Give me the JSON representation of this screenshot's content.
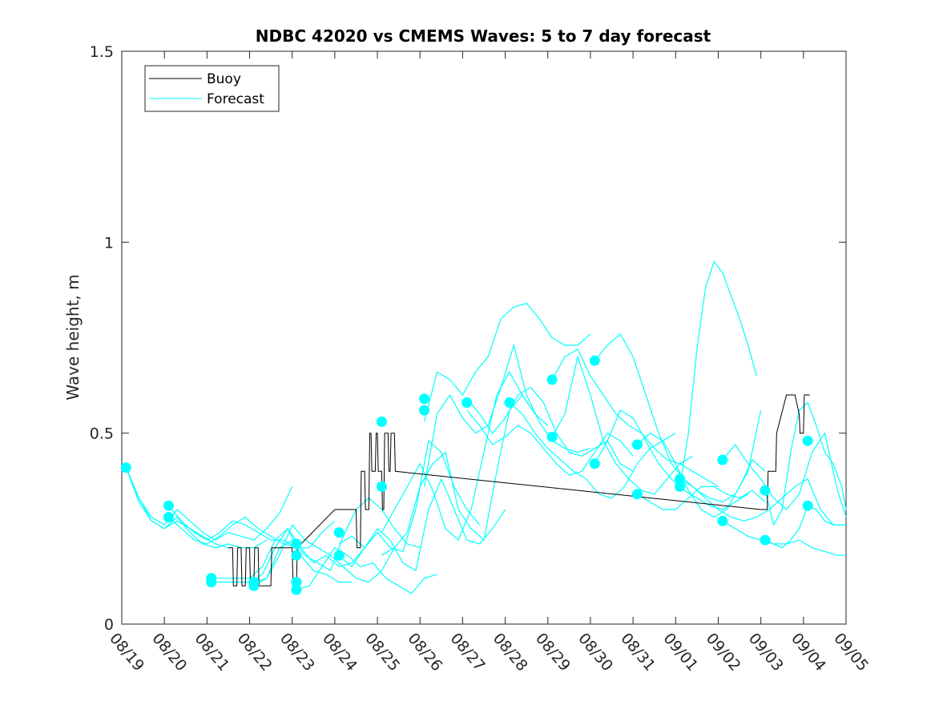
{
  "chart_data": {
    "type": "line",
    "title": "NDBC 42020 vs CMEMS Waves: 5 to 7 day forecast",
    "ylabel": "Wave height, m",
    "xlabel": "",
    "xlim": [
      0,
      17
    ],
    "ylim": [
      0,
      1.5
    ],
    "x_ticks": [
      "08/19",
      "08/20",
      "08/21",
      "08/22",
      "08/23",
      "08/24",
      "08/25",
      "08/26",
      "08/27",
      "08/28",
      "08/29",
      "08/30",
      "08/31",
      "09/01",
      "09/02",
      "09/03",
      "09/04",
      "09/05"
    ],
    "y_ticks": [
      {
        "value": 0,
        "label": "0"
      },
      {
        "value": 0.5,
        "label": "0.5"
      },
      {
        "value": 1,
        "label": "1"
      },
      {
        "value": 1.5,
        "label": "1.5"
      }
    ],
    "grid": false,
    "legend_position": "top-left",
    "colors": {
      "buoy": "#000000",
      "forecast": "#00ffff",
      "axes": "#262626"
    },
    "legend": [
      {
        "label": "Buoy",
        "color": "#000000"
      },
      {
        "label": "Forecast",
        "color": "#00ffff"
      }
    ],
    "buoy": {
      "name": "Buoy",
      "x": [
        2.5,
        2.6,
        2.62,
        2.7,
        2.72,
        2.8,
        2.82,
        2.9,
        2.92,
        3.0,
        3.02,
        3.1,
        3.12,
        3.2,
        3.22,
        3.5,
        3.52,
        4.0,
        4.02,
        4.1,
        4.12,
        5.0,
        5.3,
        5.5,
        5.52,
        5.6,
        5.62,
        5.7,
        5.72,
        5.8,
        5.82,
        5.85,
        5.87,
        5.95,
        5.97,
        6.0,
        6.02,
        6.1,
        6.12,
        6.15,
        6.17,
        6.25,
        6.27,
        6.3,
        6.32,
        6.4,
        6.42,
        15.0,
        15.02,
        15.15,
        15.17,
        15.35,
        15.37,
        15.6,
        15.8,
        15.9,
        15.92,
        16.0,
        16.02,
        16.15
      ],
      "y": [
        0.2,
        0.2,
        0.1,
        0.1,
        0.2,
        0.2,
        0.1,
        0.1,
        0.2,
        0.2,
        0.1,
        0.1,
        0.2,
        0.2,
        0.1,
        0.1,
        0.2,
        0.2,
        0.1,
        0.1,
        0.2,
        0.3,
        0.3,
        0.3,
        0.2,
        0.2,
        0.4,
        0.4,
        0.3,
        0.3,
        0.5,
        0.5,
        0.4,
        0.4,
        0.5,
        0.5,
        0.4,
        0.4,
        0.3,
        0.3,
        0.5,
        0.5,
        0.4,
        0.4,
        0.5,
        0.5,
        0.4,
        0.3,
        0.3,
        0.3,
        0.4,
        0.4,
        0.5,
        0.6,
        0.6,
        0.55,
        0.5,
        0.5,
        0.6,
        0.6
      ]
    },
    "forecast_series": [
      {
        "x": [
          0.1,
          0.4,
          0.7,
          1.0,
          1.3,
          1.6,
          1.9,
          2.2,
          2.5,
          2.8,
          3.1,
          3.4,
          3.7,
          4.0
        ],
        "y": [
          0.41,
          0.33,
          0.28,
          0.26,
          0.3,
          0.27,
          0.24,
          0.22,
          0.24,
          0.23,
          0.22,
          0.25,
          0.29,
          0.36
        ]
      },
      {
        "x": [
          0.1,
          0.4,
          0.7,
          1.0,
          1.3,
          1.6,
          1.9,
          2.2,
          2.5
        ],
        "y": [
          0.41,
          0.32,
          0.27,
          0.25,
          0.27,
          0.25,
          0.23,
          0.21,
          0.2
        ]
      },
      {
        "x": [
          0.1,
          0.4,
          0.7,
          1.0,
          1.3,
          1.6,
          1.9,
          2.2,
          2.5,
          2.8,
          3.1,
          3.4
        ],
        "y": [
          0.41,
          0.33,
          0.27,
          0.25,
          0.28,
          0.24,
          0.21,
          0.2,
          0.21,
          0.2,
          0.2,
          0.22
        ]
      },
      {
        "x": [
          1.1,
          1.4,
          1.7,
          2.0,
          2.3,
          2.6,
          2.9,
          3.2,
          3.5,
          3.8,
          4.1
        ],
        "y": [
          0.31,
          0.27,
          0.24,
          0.22,
          0.24,
          0.27,
          0.26,
          0.24,
          0.22,
          0.22,
          0.2
        ]
      },
      {
        "x": [
          1.1,
          1.4,
          1.7,
          2.0,
          2.3,
          2.6,
          2.9,
          3.2,
          3.5,
          3.8,
          4.1,
          4.4,
          4.7,
          5.0
        ],
        "y": [
          0.28,
          0.25,
          0.22,
          0.21,
          0.23,
          0.26,
          0.28,
          0.25,
          0.23,
          0.21,
          0.2,
          0.2,
          0.24,
          0.27
        ]
      },
      {
        "x": [
          2.1,
          2.4,
          2.7,
          3.0,
          3.3,
          3.6,
          3.9,
          4.2,
          4.5,
          4.8,
          5.1,
          5.4,
          5.7,
          6.0
        ],
        "y": [
          0.12,
          0.12,
          0.12,
          0.12,
          0.15,
          0.22,
          0.25,
          0.2,
          0.16,
          0.18,
          0.15,
          0.16,
          0.2,
          0.24
        ]
      },
      {
        "x": [
          2.1,
          2.4,
          2.7,
          3.0,
          3.3,
          3.6,
          3.9,
          4.2,
          4.5,
          4.8,
          5.1,
          5.4
        ],
        "y": [
          0.11,
          0.11,
          0.11,
          0.11,
          0.13,
          0.2,
          0.25,
          0.18,
          0.14,
          0.13,
          0.11,
          0.11
        ]
      },
      {
        "x": [
          3.1,
          3.4,
          3.7,
          4.0,
          4.3,
          4.6,
          4.9,
          5.2,
          5.5,
          5.8,
          6.1,
          6.4
        ],
        "y": [
          0.1,
          0.12,
          0.18,
          0.26,
          0.22,
          0.2,
          0.18,
          0.15,
          0.12,
          0.11,
          0.14,
          0.2
        ]
      },
      {
        "x": [
          3.1,
          3.4,
          3.7,
          4.0,
          4.3,
          4.6,
          4.9,
          5.2,
          5.5,
          5.8,
          6.1,
          6.4,
          6.7,
          7.0
        ],
        "y": [
          0.11,
          0.12,
          0.2,
          0.22,
          0.18,
          0.16,
          0.14,
          0.23,
          0.3,
          0.33,
          0.3,
          0.25,
          0.21,
          0.2
        ]
      },
      {
        "x": [
          4.1,
          4.4,
          4.7,
          5.0,
          5.3,
          5.6,
          5.9,
          6.2,
          6.5,
          6.8,
          7.1,
          7.4
        ],
        "y": [
          0.09,
          0.1,
          0.15,
          0.2,
          0.18,
          0.15,
          0.16,
          0.12,
          0.1,
          0.08,
          0.12,
          0.13
        ]
      },
      {
        "x": [
          5.1,
          5.4,
          5.7,
          6.0,
          6.3,
          6.6,
          6.9,
          7.2,
          7.5,
          7.8,
          8.1,
          8.4
        ],
        "y": [
          0.21,
          0.23,
          0.2,
          0.24,
          0.2,
          0.19,
          0.3,
          0.48,
          0.45,
          0.36,
          0.3,
          0.26
        ]
      },
      {
        "x": [
          5.1,
          5.4,
          5.7,
          6.0,
          6.3,
          6.6,
          6.9,
          7.2,
          7.5,
          7.8,
          8.1,
          8.4,
          8.7,
          9.0
        ],
        "y": [
          0.18,
          0.15,
          0.2,
          0.25,
          0.22,
          0.16,
          0.14,
          0.3,
          0.38,
          0.3,
          0.22,
          0.21,
          0.25,
          0.3
        ]
      },
      {
        "x": [
          6.1,
          6.4,
          6.7,
          7.0,
          7.3,
          7.6,
          7.9,
          8.2,
          8.5,
          8.8,
          9.1,
          9.4,
          9.7,
          10.0
        ],
        "y": [
          0.24,
          0.3,
          0.36,
          0.42,
          0.35,
          0.25,
          0.22,
          0.3,
          0.45,
          0.6,
          0.66,
          0.6,
          0.55,
          0.52
        ]
      },
      {
        "x": [
          6.1,
          6.4,
          6.7,
          7.0,
          7.3,
          7.6,
          7.9,
          8.2,
          8.5,
          8.8,
          9.1,
          9.4,
          9.7
        ],
        "y": [
          0.18,
          0.2,
          0.24,
          0.36,
          0.42,
          0.45,
          0.3,
          0.25,
          0.22,
          0.4,
          0.56,
          0.6,
          0.55
        ]
      },
      {
        "x": [
          7.1,
          7.4,
          7.7,
          8.0,
          8.3,
          8.6,
          8.9,
          9.2,
          9.5,
          9.8,
          10.1,
          10.4,
          10.7,
          11.0
        ],
        "y": [
          0.53,
          0.66,
          0.64,
          0.6,
          0.66,
          0.7,
          0.8,
          0.83,
          0.84,
          0.8,
          0.75,
          0.73,
          0.73,
          0.76
        ]
      },
      {
        "x": [
          7.1,
          7.4,
          7.7,
          8.0,
          8.3,
          8.6,
          8.9,
          9.2,
          9.5,
          9.8,
          10.1,
          10.4,
          10.7,
          11.0
        ],
        "y": [
          0.36,
          0.55,
          0.6,
          0.54,
          0.5,
          0.52,
          0.62,
          0.73,
          0.6,
          0.53,
          0.48,
          0.46,
          0.45,
          0.46
        ]
      },
      {
        "x": [
          8.1,
          8.4,
          8.7,
          9.0,
          9.3,
          9.6,
          9.9,
          10.2,
          10.5,
          10.8,
          11.1,
          11.4,
          11.7,
          12.0
        ],
        "y": [
          0.59,
          0.55,
          0.5,
          0.54,
          0.6,
          0.62,
          0.58,
          0.5,
          0.45,
          0.44,
          0.46,
          0.48,
          0.42,
          0.4
        ]
      },
      {
        "x": [
          8.1,
          8.4,
          8.7,
          9.0,
          9.3,
          9.6,
          9.9,
          10.2,
          10.5,
          10.8,
          11.1,
          11.4,
          11.7,
          12.0
        ],
        "y": [
          0.56,
          0.52,
          0.47,
          0.49,
          0.52,
          0.5,
          0.46,
          0.42,
          0.39,
          0.4,
          0.45,
          0.5,
          0.48,
          0.44
        ]
      },
      {
        "x": [
          9.1,
          9.4,
          9.7,
          10.0,
          10.3,
          10.6,
          10.9,
          11.2,
          11.5,
          11.8,
          12.1,
          12.4,
          12.7,
          13.0
        ],
        "y": [
          0.58,
          0.55,
          0.5,
          0.46,
          0.43,
          0.4,
          0.38,
          0.34,
          0.33,
          0.36,
          0.42,
          0.46,
          0.48,
          0.5
        ]
      },
      {
        "x": [
          10.1,
          10.4,
          10.7,
          11.0,
          11.3,
          11.6,
          11.9,
          12.2,
          12.5,
          12.8,
          13.1,
          13.4,
          13.7,
          14.0
        ],
        "y": [
          0.64,
          0.7,
          0.72,
          0.65,
          0.6,
          0.55,
          0.52,
          0.5,
          0.46,
          0.43,
          0.42,
          0.4,
          0.38,
          0.36
        ]
      },
      {
        "x": [
          10.1,
          10.4,
          10.7,
          11.0,
          11.3,
          11.6,
          11.9,
          12.2,
          12.5,
          12.8,
          13.1,
          13.4
        ],
        "y": [
          0.49,
          0.55,
          0.7,
          0.6,
          0.48,
          0.42,
          0.38,
          0.35,
          0.34,
          0.38,
          0.42,
          0.44
        ]
      },
      {
        "x": [
          11.1,
          11.4,
          11.7,
          12.0,
          12.3,
          12.6,
          12.9,
          13.2,
          13.5,
          13.8,
          14.1,
          14.4,
          14.7,
          15.0
        ],
        "y": [
          0.69,
          0.73,
          0.76,
          0.7,
          0.6,
          0.5,
          0.42,
          0.38,
          0.35,
          0.33,
          0.32,
          0.34,
          0.4,
          0.56
        ]
      },
      {
        "x": [
          11.1,
          11.4,
          11.7,
          12.0,
          12.3,
          12.6,
          12.9,
          13.2,
          13.5,
          13.8,
          14.1,
          14.4,
          14.7
        ],
        "y": [
          0.42,
          0.48,
          0.56,
          0.54,
          0.48,
          0.42,
          0.38,
          0.35,
          0.33,
          0.31,
          0.3,
          0.32,
          0.34
        ]
      },
      {
        "x": [
          12.1,
          12.4,
          12.7,
          13.0,
          13.3,
          13.6,
          13.9,
          14.2,
          14.5,
          14.8,
          15.1
        ],
        "y": [
          0.47,
          0.5,
          0.48,
          0.42,
          0.35,
          0.3,
          0.28,
          0.3,
          0.36,
          0.43,
          0.4
        ]
      },
      {
        "x": [
          12.1,
          12.4,
          12.7,
          13.0,
          13.3,
          13.6,
          13.9,
          14.2,
          14.5,
          14.8,
          15.1
        ],
        "y": [
          0.34,
          0.32,
          0.3,
          0.3,
          0.33,
          0.36,
          0.36,
          0.34,
          0.33,
          0.35,
          0.32
        ]
      },
      {
        "x": [
          13.1,
          13.3,
          13.5,
          13.7,
          13.9,
          14.1,
          14.3,
          14.5,
          14.7,
          14.9
        ],
        "y": [
          0.36,
          0.5,
          0.72,
          0.88,
          0.95,
          0.92,
          0.86,
          0.8,
          0.73,
          0.65
        ]
      },
      {
        "x": [
          13.1,
          13.4,
          13.7,
          14.0,
          14.3,
          14.6,
          14.9,
          15.2,
          15.5,
          15.8,
          16.1,
          16.4,
          16.7,
          17.0
        ],
        "y": [
          0.38,
          0.36,
          0.33,
          0.3,
          0.28,
          0.27,
          0.28,
          0.3,
          0.33,
          0.36,
          0.38,
          0.3,
          0.26,
          0.26
        ]
      },
      {
        "x": [
          14.1,
          14.4,
          14.7,
          15.0,
          15.3,
          15.6,
          15.9,
          16.2,
          16.5,
          16.8,
          17.0
        ],
        "y": [
          0.43,
          0.47,
          0.42,
          0.38,
          0.33,
          0.3,
          0.34,
          0.45,
          0.5,
          0.35,
          0.28
        ]
      },
      {
        "x": [
          14.1,
          14.4,
          14.7,
          15.0,
          15.3,
          15.6,
          15.9,
          16.2,
          16.5,
          16.8,
          17.0
        ],
        "y": [
          0.27,
          0.25,
          0.23,
          0.22,
          0.21,
          0.21,
          0.22,
          0.2,
          0.19,
          0.18,
          0.18
        ]
      },
      {
        "x": [
          15.1,
          15.3,
          15.5,
          15.7,
          15.9,
          16.1,
          16.3,
          16.5,
          16.7,
          16.9,
          17.0
        ],
        "y": [
          0.35,
          0.26,
          0.3,
          0.45,
          0.56,
          0.58,
          0.52,
          0.45,
          0.42,
          0.36,
          0.3
        ]
      },
      {
        "x": [
          15.1,
          15.3,
          15.5,
          15.7,
          15.9,
          16.1,
          16.3,
          16.5,
          16.7,
          16.9,
          17.0
        ],
        "y": [
          0.22,
          0.21,
          0.2,
          0.22,
          0.25,
          0.31,
          0.3,
          0.27,
          0.26,
          0.26,
          0.26
        ]
      }
    ],
    "forecast_markers": {
      "x": [
        0.1,
        1.1,
        1.1,
        2.1,
        2.1,
        3.1,
        3.1,
        4.1,
        4.1,
        4.1,
        4.1,
        5.1,
        5.1,
        6.1,
        6.1,
        7.1,
        7.1,
        8.1,
        8.1,
        9.1,
        10.1,
        10.1,
        11.1,
        11.1,
        12.1,
        12.1,
        13.1,
        13.1,
        14.1,
        14.1,
        15.1,
        15.1,
        16.1,
        16.1
      ],
      "y": [
        0.41,
        0.31,
        0.28,
        0.12,
        0.11,
        0.11,
        0.1,
        0.11,
        0.09,
        0.21,
        0.18,
        0.24,
        0.18,
        0.53,
        0.36,
        0.59,
        0.56,
        0.58,
        0.58,
        0.58,
        0.64,
        0.49,
        0.69,
        0.42,
        0.47,
        0.34,
        0.38,
        0.36,
        0.43,
        0.27,
        0.35,
        0.22,
        0.48,
        0.31
      ]
    }
  }
}
